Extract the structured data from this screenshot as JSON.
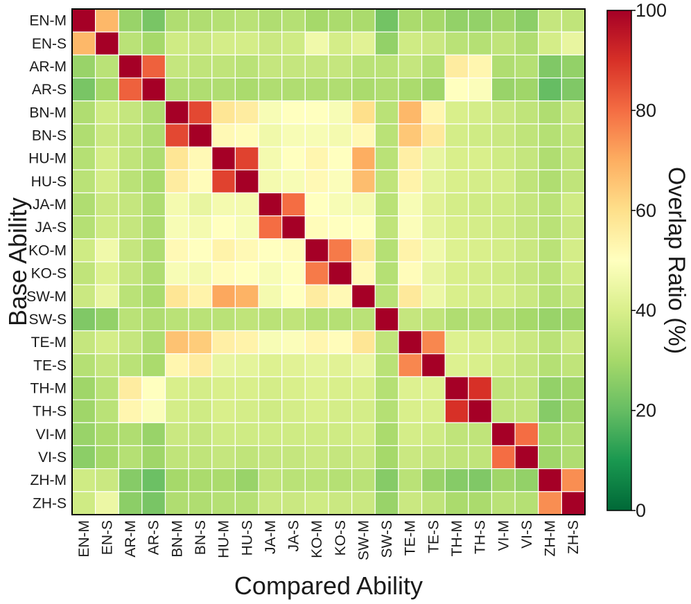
{
  "chart_data": {
    "type": "heatmap",
    "xlabel": "Compared Ability",
    "ylabel": "Base Ability",
    "x_categories": [
      "EN-M",
      "EN-S",
      "AR-M",
      "AR-S",
      "BN-M",
      "BN-S",
      "HU-M",
      "HU-S",
      "JA-M",
      "JA-S",
      "KO-M",
      "KO-S",
      "SW-M",
      "SW-S",
      "TE-M",
      "TE-S",
      "TH-M",
      "TH-S",
      "VI-M",
      "VI-S",
      "ZH-M",
      "ZH-S"
    ],
    "y_categories": [
      "EN-M",
      "EN-S",
      "AR-M",
      "AR-S",
      "BN-M",
      "BN-S",
      "HU-M",
      "HU-S",
      "JA-M",
      "JA-S",
      "KO-M",
      "KO-S",
      "SW-M",
      "SW-S",
      "TE-M",
      "TE-S",
      "TH-M",
      "TH-S",
      "VI-M",
      "VI-S",
      "ZH-M",
      "ZH-S"
    ],
    "values": [
      [
        100,
        68,
        28,
        23,
        32,
        32,
        33,
        34,
        32,
        33,
        30,
        31,
        31,
        22,
        31,
        30,
        27,
        27,
        29,
        26,
        36,
        35
      ],
      [
        68,
        100,
        34,
        30,
        38,
        37,
        39,
        39,
        37,
        38,
        46,
        39,
        42,
        27,
        38,
        37,
        34,
        33,
        35,
        32,
        39,
        44
      ],
      [
        28,
        34,
        100,
        82,
        36,
        35,
        35,
        34,
        36,
        36,
        36,
        36,
        34,
        34,
        36,
        33,
        56,
        53,
        32,
        33,
        24,
        27
      ],
      [
        23,
        30,
        82,
        100,
        32,
        32,
        32,
        31,
        32,
        32,
        32,
        32,
        31,
        32,
        31,
        29,
        50,
        49,
        28,
        29,
        20,
        24
      ],
      [
        32,
        38,
        36,
        32,
        100,
        86,
        58,
        56,
        48,
        50,
        50,
        48,
        60,
        34,
        68,
        53,
        40,
        39,
        37,
        35,
        32,
        36
      ],
      [
        32,
        37,
        35,
        32,
        86,
        100,
        52,
        51,
        46,
        48,
        48,
        47,
        52,
        34,
        65,
        57,
        39,
        38,
        37,
        35,
        33,
        35
      ],
      [
        33,
        39,
        35,
        32,
        58,
        52,
        100,
        87,
        47,
        50,
        53,
        50,
        70,
        34,
        55,
        44,
        40,
        40,
        38,
        36,
        32,
        35
      ],
      [
        34,
        39,
        34,
        31,
        56,
        51,
        87,
        100,
        47,
        48,
        52,
        49,
        67,
        35,
        54,
        43,
        40,
        39,
        39,
        35,
        32,
        35
      ],
      [
        32,
        37,
        36,
        32,
        47,
        44,
        47,
        47,
        100,
        80,
        50,
        48,
        47,
        34,
        48,
        42,
        39,
        38,
        38,
        36,
        34,
        38
      ],
      [
        33,
        38,
        36,
        32,
        48,
        47,
        50,
        48,
        80,
        100,
        51,
        50,
        50,
        35,
        49,
        43,
        40,
        39,
        38,
        36,
        34,
        37
      ],
      [
        38,
        46,
        36,
        32,
        52,
        50,
        54,
        52,
        50,
        51,
        100,
        78,
        57,
        33,
        54,
        46,
        41,
        40,
        39,
        37,
        34,
        39
      ],
      [
        35,
        41,
        36,
        32,
        48,
        47,
        51,
        50,
        48,
        50,
        78,
        100,
        52,
        33,
        51,
        44,
        40,
        39,
        38,
        36,
        34,
        38
      ],
      [
        37,
        44,
        34,
        31,
        58,
        54,
        71,
        69,
        47,
        50,
        56,
        52,
        100,
        34,
        57,
        45,
        40,
        39,
        39,
        37,
        33,
        36
      ],
      [
        24,
        27,
        34,
        32,
        34,
        34,
        34,
        35,
        34,
        35,
        33,
        33,
        34,
        100,
        36,
        35,
        32,
        32,
        32,
        30,
        28,
        29
      ],
      [
        36,
        39,
        36,
        32,
        66,
        64,
        55,
        54,
        48,
        49,
        53,
        51,
        58,
        35,
        100,
        76,
        41,
        40,
        39,
        37,
        34,
        37
      ],
      [
        33,
        36,
        34,
        31,
        53,
        56,
        44,
        43,
        41,
        42,
        43,
        42,
        44,
        34,
        76,
        100,
        41,
        40,
        38,
        36,
        33,
        35
      ],
      [
        29,
        34,
        56,
        50,
        40,
        39,
        40,
        40,
        39,
        40,
        41,
        40,
        40,
        33,
        41,
        41,
        100,
        90,
        35,
        35,
        27,
        29
      ],
      [
        29,
        34,
        53,
        49,
        39,
        38,
        40,
        39,
        38,
        39,
        40,
        39,
        39,
        33,
        40,
        40,
        90,
        100,
        35,
        35,
        25,
        29
      ],
      [
        28,
        31,
        32,
        28,
        37,
        36,
        38,
        38,
        38,
        38,
        38,
        38,
        39,
        31,
        39,
        38,
        35,
        35,
        100,
        80,
        30,
        32
      ],
      [
        26,
        30,
        33,
        29,
        35,
        35,
        36,
        35,
        36,
        36,
        37,
        36,
        37,
        30,
        37,
        36,
        35,
        35,
        80,
        100,
        29,
        32
      ],
      [
        38,
        37,
        25,
        21,
        30,
        31,
        31,
        28,
        35,
        34,
        34,
        33,
        34,
        25,
        34,
        28,
        25,
        24,
        29,
        27,
        100,
        75
      ],
      [
        38,
        45,
        26,
        23,
        32,
        32,
        33,
        33,
        37,
        37,
        38,
        37,
        37,
        28,
        37,
        35,
        31,
        31,
        34,
        33,
        75,
        100
      ]
    ],
    "colorbar": {
      "label": "Overlap Ratio (%)",
      "range": [
        0,
        100
      ],
      "ticks": [
        "0",
        "20",
        "40",
        "60",
        "80",
        "100"
      ],
      "colormap": "RdYlGn_r"
    }
  }
}
